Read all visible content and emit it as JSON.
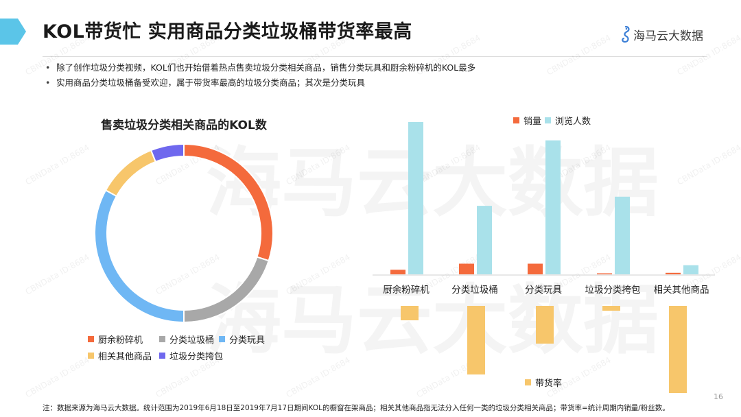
{
  "header": {
    "title": "KOL带货忙 实用商品分类垃圾桶带货率最高",
    "logo_text": "海马云大数据",
    "accent_color": "#5bc5e8"
  },
  "bullets": [
    "除了创作垃圾分类视频，KOL们也开始借着热点售卖垃圾分类相关商品，销售分类玩具和厨余粉碎机的KOL最多",
    "实用商品分类垃圾桶备受欢迎，属于带货率最高的垃圾分类商品；其次是分类玩具"
  ],
  "watermark": {
    "big_text": "海马云大数据",
    "small_text": "CBNData ID:8684"
  },
  "chart_data": [
    {
      "type": "pie",
      "variant": "donut",
      "title": "售卖垃圾分类相关商品的KOL数",
      "labels": [
        "厨余粉碎机",
        "分类垃圾桶",
        "分类玩具",
        "相关其他商品",
        "垃圾分类挎包"
      ],
      "values": [
        30,
        20,
        33,
        11,
        6
      ],
      "value_unit": "percent (estimated)",
      "colors": [
        "#f46a3c",
        "#a8a8a8",
        "#6fb7f4",
        "#f7c66b",
        "#6f68ee"
      ],
      "legend_position": "bottom"
    },
    {
      "type": "bar",
      "categories": [
        "厨余粉碎机",
        "分类垃圾桶",
        "分类玩具",
        "垃圾分类挎包",
        "相关其他商品"
      ],
      "series": [
        {
          "name": "销量",
          "values": [
            3,
            7,
            7,
            0.5,
            1
          ],
          "color": "#f46a3c"
        },
        {
          "name": "浏览人数",
          "values": [
            100,
            45,
            88,
            51,
            6
          ],
          "color": "#a9e1ea"
        }
      ],
      "value_unit": "relative (no axis shown)",
      "legend_position": "top",
      "ylim": [
        0,
        100
      ]
    },
    {
      "type": "bar",
      "orientation": "downward",
      "categories": [
        "厨余粉碎机",
        "分类垃圾桶",
        "分类玩具",
        "垃圾分类挎包",
        "相关其他商品"
      ],
      "series": [
        {
          "name": "带货率",
          "values": [
            21,
            100,
            55,
            7,
            127
          ],
          "color": "#f7c66b"
        }
      ],
      "value_unit": "relative (no axis shown)",
      "legend_position": "bottom",
      "ylim": [
        0,
        130
      ]
    }
  ],
  "footnote": "注：数据来源为海马云大数据。统计范围为2019年6月18日至2019年7月17日期间KOL的橱窗在架商品；相关其他商品指无法分入任何一类的垃圾分类相关商品；带货率=统计周期内销量/粉丝数。",
  "page_number": "16"
}
